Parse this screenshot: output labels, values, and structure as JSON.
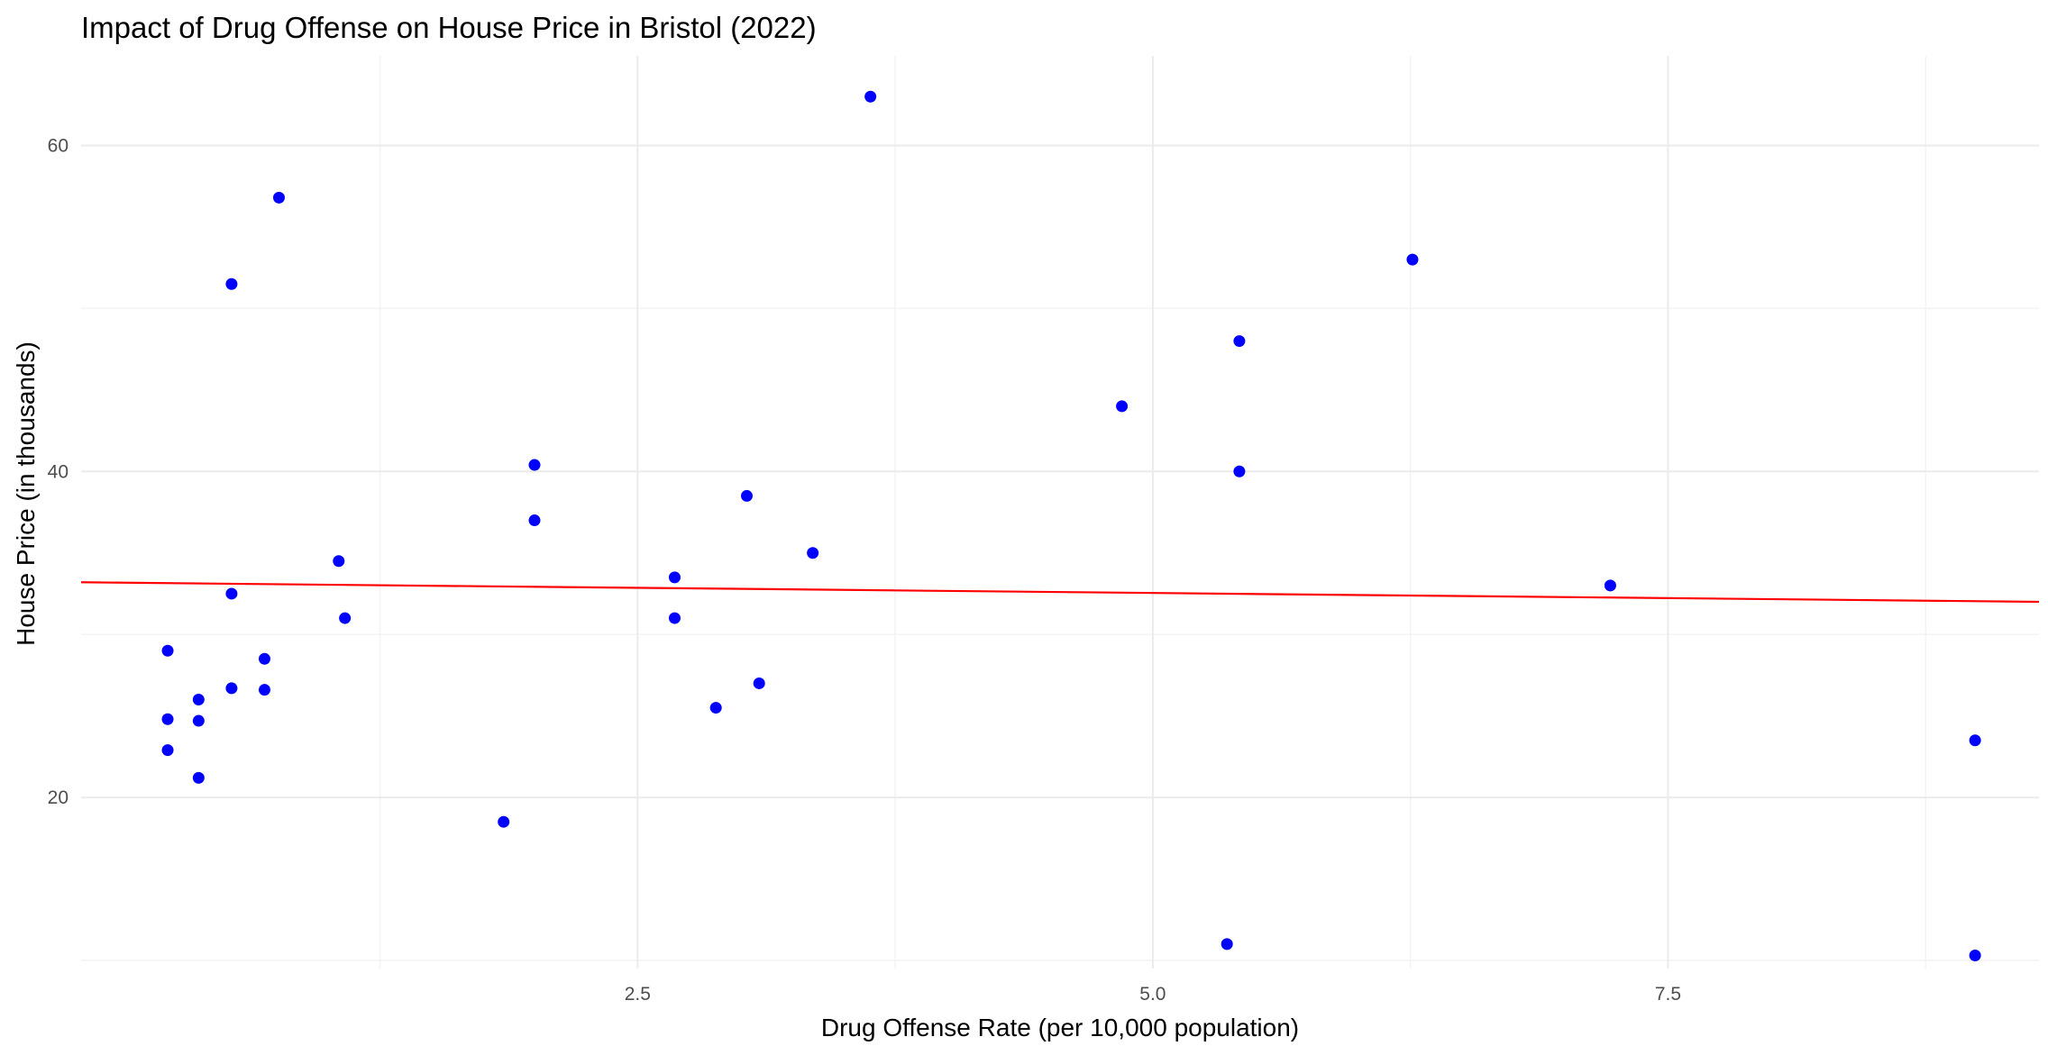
{
  "chart_data": {
    "type": "scatter",
    "title": "Impact of Drug Offense on House Price in Bristol (2022)",
    "xlabel": "Drug Offense Rate (per 10,000 population)",
    "ylabel": "House Price (in thousands)",
    "xlim": [
      -0.2,
      9.3
    ],
    "ylim": [
      9.5,
      65.5
    ],
    "x_ticks": [
      2.5,
      5.0,
      7.5
    ],
    "x_tick_labels": [
      "2.5",
      "5.0",
      "7.5"
    ],
    "x_minor_ticks": [
      1.25,
      3.75,
      6.25,
      8.75
    ],
    "y_ticks": [
      20,
      40,
      60
    ],
    "y_tick_labels": [
      "20",
      "40",
      "60"
    ],
    "y_minor_ticks": [
      10,
      30,
      50
    ],
    "grid": true,
    "point_color": "#0000ff",
    "trend_color": "#ff0000",
    "points": [
      {
        "x": 0.22,
        "y": 29.0
      },
      {
        "x": 0.22,
        "y": 24.8
      },
      {
        "x": 0.22,
        "y": 22.9
      },
      {
        "x": 0.37,
        "y": 26.0
      },
      {
        "x": 0.37,
        "y": 24.7
      },
      {
        "x": 0.37,
        "y": 21.2
      },
      {
        "x": 0.53,
        "y": 51.5
      },
      {
        "x": 0.53,
        "y": 32.5
      },
      {
        "x": 0.53,
        "y": 26.7
      },
      {
        "x": 0.69,
        "y": 28.5
      },
      {
        "x": 0.69,
        "y": 26.6
      },
      {
        "x": 0.76,
        "y": 56.8
      },
      {
        "x": 1.05,
        "y": 34.5
      },
      {
        "x": 1.08,
        "y": 31.0
      },
      {
        "x": 1.85,
        "y": 18.5
      },
      {
        "x": 2.0,
        "y": 40.4
      },
      {
        "x": 2.0,
        "y": 37.0
      },
      {
        "x": 2.68,
        "y": 33.5
      },
      {
        "x": 2.68,
        "y": 31.0
      },
      {
        "x": 2.88,
        "y": 25.5
      },
      {
        "x": 3.03,
        "y": 38.5
      },
      {
        "x": 3.09,
        "y": 27.0
      },
      {
        "x": 3.35,
        "y": 35.0
      },
      {
        "x": 3.63,
        "y": 63.0
      },
      {
        "x": 4.85,
        "y": 44.0
      },
      {
        "x": 5.36,
        "y": 11.0
      },
      {
        "x": 5.42,
        "y": 48.0
      },
      {
        "x": 5.42,
        "y": 40.0
      },
      {
        "x": 6.26,
        "y": 53.0
      },
      {
        "x": 7.22,
        "y": 33.0
      },
      {
        "x": 8.99,
        "y": 23.5
      },
      {
        "x": 8.99,
        "y": 10.3
      }
    ],
    "trend_line": {
      "x": [
        -0.2,
        9.3
      ],
      "y": [
        33.2,
        32.0
      ]
    }
  }
}
